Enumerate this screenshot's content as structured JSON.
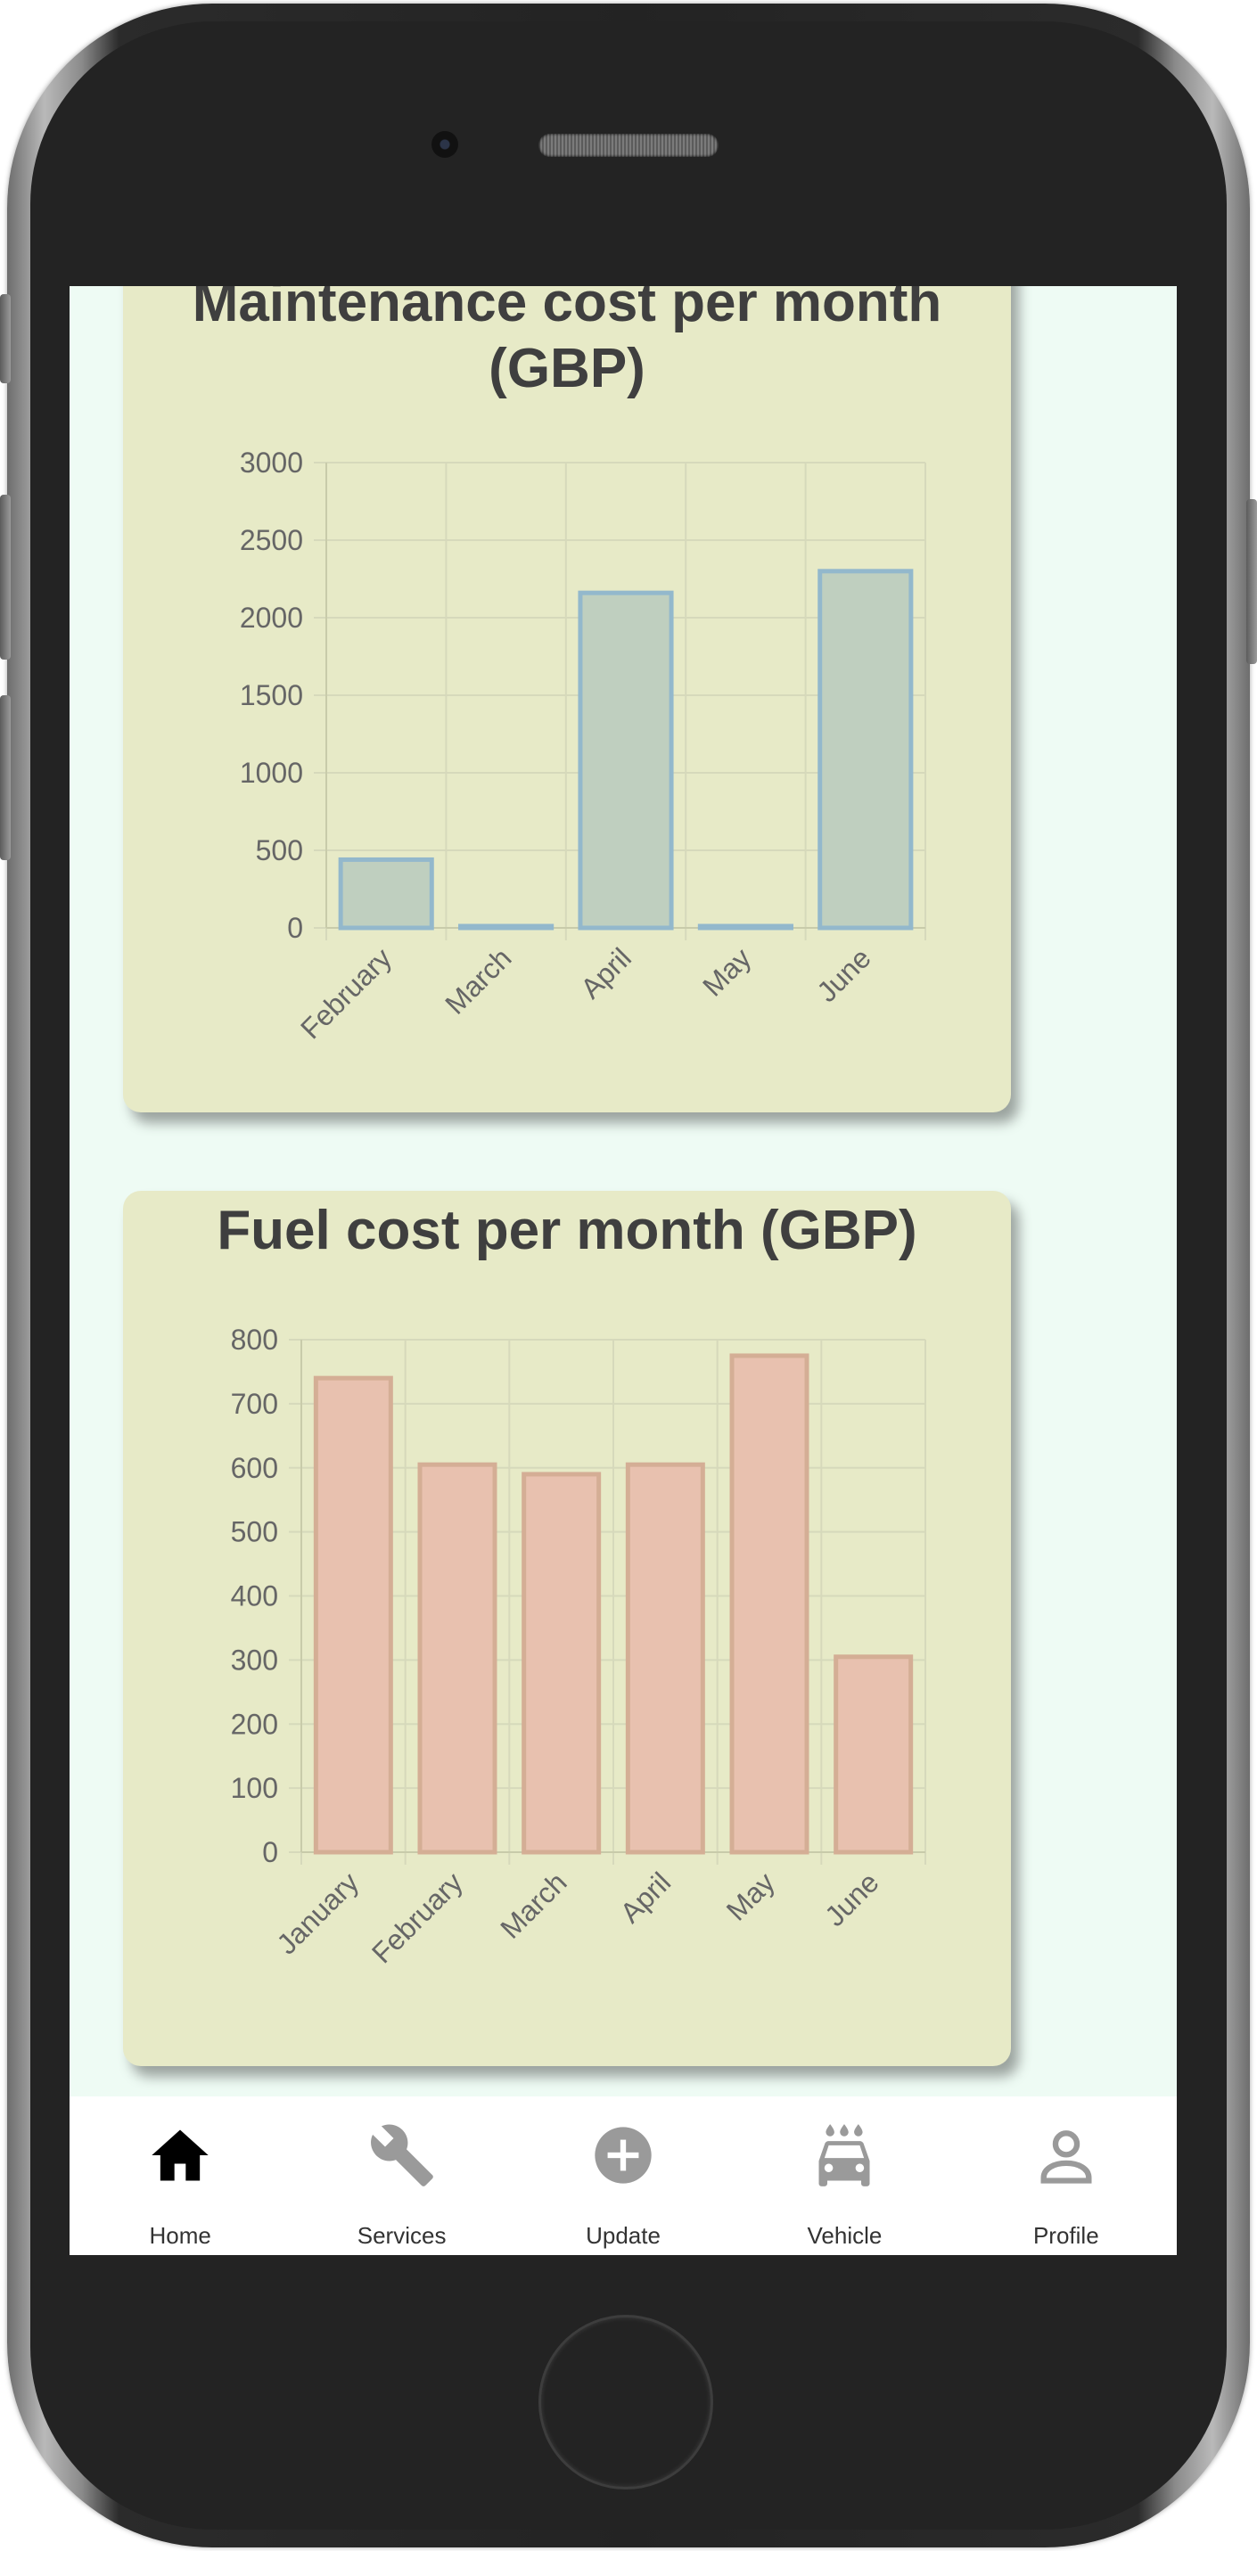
{
  "colors": {
    "screen_bg": "#eefbf4",
    "card_bg": "#e7eac7",
    "maintenance_bar_fill": "#bfcfbf",
    "maintenance_bar_stroke": "#93b8cc",
    "fuel_bar_fill": "#e8c1af",
    "fuel_bar_stroke": "#d4ae95",
    "nav_active": "#000000",
    "nav_inactive": "#999999"
  },
  "maintenance_card": {
    "title_line1": "Maintenance cost per month",
    "title_line2": "(GBP)"
  },
  "fuel_card": {
    "title": "Fuel cost per month (GBP)"
  },
  "chart_data": [
    {
      "type": "bar",
      "title": "Maintenance cost per month (GBP)",
      "categories": [
        "February",
        "March",
        "April",
        "May",
        "June"
      ],
      "values": [
        440,
        0,
        2160,
        0,
        2300
      ],
      "ylim": [
        0,
        3000
      ],
      "yticks": [
        "0",
        "500",
        "1000",
        "1500",
        "2000",
        "2500",
        "3000"
      ],
      "grid": true,
      "legend": "none"
    },
    {
      "type": "bar",
      "title": "Fuel cost per month (GBP)",
      "categories": [
        "January",
        "February",
        "March",
        "April",
        "May",
        "June"
      ],
      "values": [
        740,
        605,
        590,
        605,
        775,
        305
      ],
      "ylim": [
        0,
        800
      ],
      "yticks": [
        "0",
        "100",
        "200",
        "300",
        "400",
        "500",
        "600",
        "700",
        "800"
      ],
      "grid": true,
      "legend": "none"
    }
  ],
  "nav": {
    "items": [
      {
        "label": "Home",
        "icon": "home-icon",
        "active": true
      },
      {
        "label": "Services",
        "icon": "wrench-icon",
        "active": false
      },
      {
        "label": "Update",
        "icon": "plus-circle-icon",
        "active": false
      },
      {
        "label": "Vehicle",
        "icon": "car-wash-icon",
        "active": false
      },
      {
        "label": "Profile",
        "icon": "person-icon",
        "active": false
      }
    ]
  }
}
